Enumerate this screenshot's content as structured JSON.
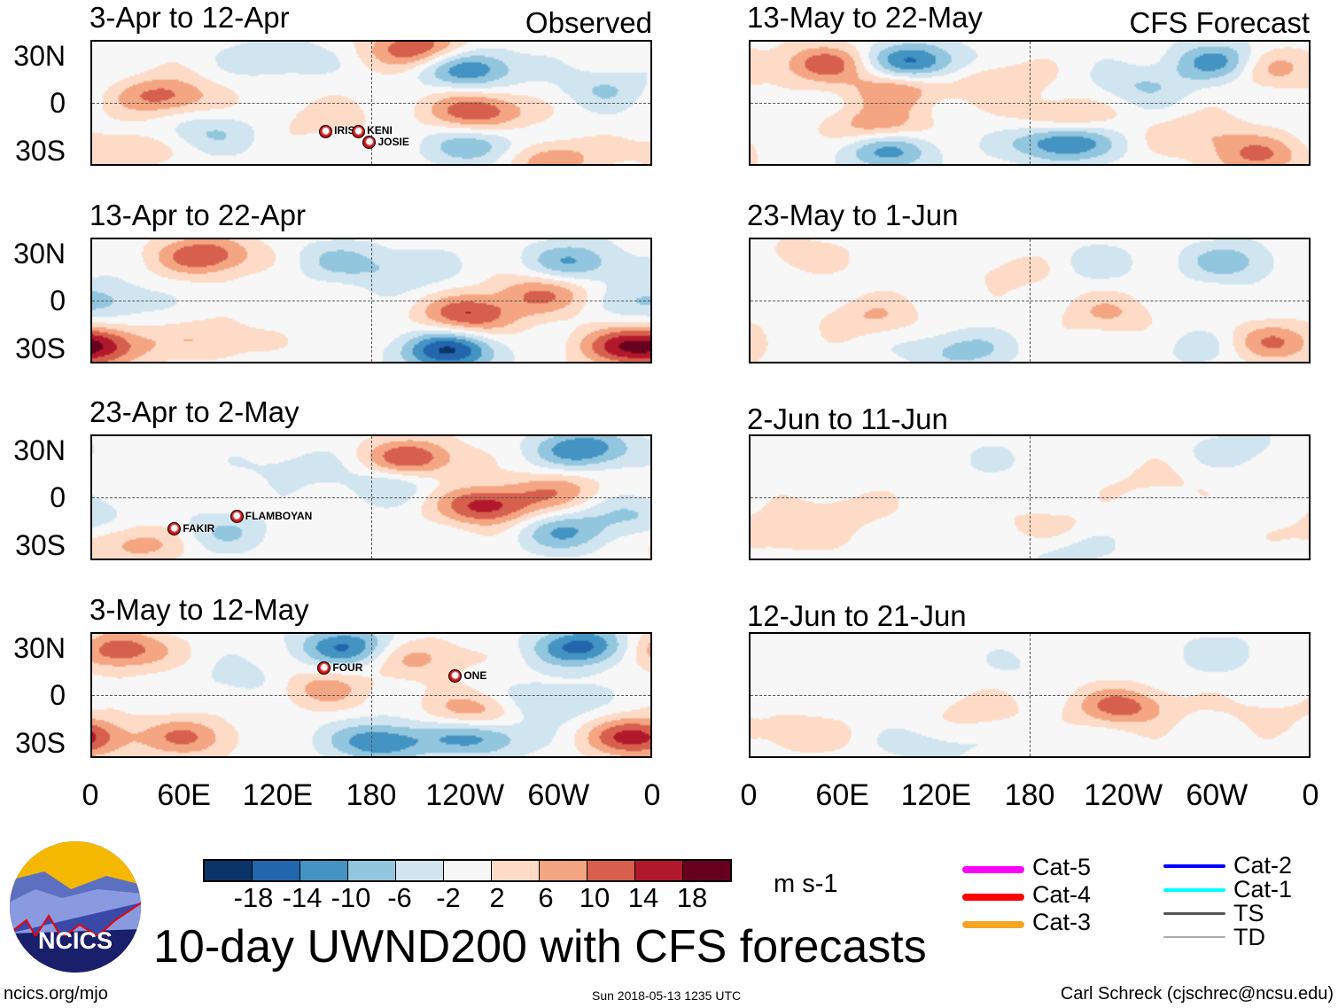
{
  "title": "10-day UWND200 with CFS forecasts",
  "units": "m s-1",
  "observed_label": "Observed",
  "forecast_label": "CFS Forecast",
  "logo_text": "NCICS",
  "footer": {
    "left": "ncics.org/mjo",
    "center": "Sun 2018-05-13 1235 UTC",
    "right": "Carl Schreck (cjschrec@ncsu.edu)"
  },
  "lat_labels": [
    "30N",
    "0",
    "30S"
  ],
  "lon_labels": [
    "0",
    "60E",
    "120E",
    "180",
    "120W",
    "60W",
    "0"
  ],
  "colorbar": {
    "colors": [
      "#0b3468",
      "#2266ad",
      "#4393c3",
      "#92c5de",
      "#d1e5f0",
      "#f7f7f7",
      "#fddbc7",
      "#f4a582",
      "#d6604d",
      "#b2182b",
      "#67001f"
    ],
    "labels": [
      "-18",
      "-14",
      "-10",
      "-6",
      "-2",
      "2",
      "6",
      "10",
      "14",
      "18"
    ]
  },
  "storm_legend": [
    {
      "label": "Cat-5",
      "color": "#ff00ff"
    },
    {
      "label": "Cat-4",
      "color": "#ff0000"
    },
    {
      "label": "Cat-3",
      "color": "#f5a623"
    },
    {
      "label": "Cat-2",
      "color": "#0000ff"
    },
    {
      "label": "Cat-1",
      "color": "#00ffff"
    },
    {
      "label": "TS",
      "color": "#555555"
    },
    {
      "label": "TD",
      "color": "#aaaaaa"
    }
  ],
  "chart_data": {
    "type": "heatmap",
    "variable": "200-hPa zonal wind anomaly (m s-1)",
    "lon_range": [
      0,
      360
    ],
    "lat_range": [
      -40,
      40
    ],
    "panels": [
      {
        "title": "3-Apr to 12-Apr",
        "kind": "observed",
        "anomalies": [
          [
            45,
            5,
            12
          ],
          [
            209,
            36,
            14
          ],
          [
            243,
            23,
            -14
          ],
          [
            249,
            -5,
            14
          ],
          [
            250,
            -28,
            -10
          ],
          [
            73,
            -19,
            -6
          ],
          [
            294,
            -36,
            10
          ],
          [
            120,
            30,
            -6
          ],
          [
            20,
            -30,
            6
          ],
          [
            330,
            10,
            -6
          ],
          [
            150,
            -10,
            4
          ]
        ],
        "storms": [
          {
            "name": "IRIS",
            "lon": 150,
            "lat": -17
          },
          {
            "name": "KENI",
            "lon": 171,
            "lat": -17
          },
          {
            "name": "JOSIE",
            "lon": 178,
            "lat": -24
          }
        ]
      },
      {
        "title": "13-Apr to 22-Apr",
        "kind": "observed",
        "anomalies": [
          [
            73,
            30,
            14
          ],
          [
            243,
            -9,
            14
          ],
          [
            229,
            -32,
            -18
          ],
          [
            311,
            26,
            -10
          ],
          [
            5,
            0,
            -8
          ],
          [
            5,
            -29,
            14
          ],
          [
            288,
            5,
            10
          ],
          [
            158,
            27,
            -6
          ],
          [
            78,
            -25,
            6
          ],
          [
            200,
            20,
            -6
          ],
          [
            340,
            -30,
            10
          ]
        ],
        "storms": []
      },
      {
        "title": "23-Apr to 2-May",
        "kind": "observed",
        "anomalies": [
          [
            206,
            26,
            14
          ],
          [
            317,
            32,
            -14
          ],
          [
            254,
            -5,
            16
          ],
          [
            192,
            10,
            -6
          ],
          [
            305,
            -22,
            -10
          ],
          [
            27,
            -30,
            8
          ],
          [
            84,
            -22,
            -6
          ],
          [
            300,
            5,
            8
          ],
          [
            130,
            20,
            -4
          ],
          [
            350,
            -10,
            -6
          ]
        ],
        "storms": [
          {
            "name": "FAKIR",
            "lon": 53,
            "lat": -19
          },
          {
            "name": "FLAMBOYAN",
            "lon": 93,
            "lat": -11
          }
        ]
      },
      {
        "title": "3-May to 12-May",
        "kind": "observed",
        "anomalies": [
          [
            163,
            32,
            -14
          ],
          [
            317,
            32,
            -16
          ],
          [
            16,
            30,
            14
          ],
          [
            249,
            -10,
            10
          ],
          [
            249,
            -27,
            -12
          ],
          [
            351,
            -27,
            16
          ],
          [
            61,
            -27,
            10
          ],
          [
            186,
            -30,
            -14
          ],
          [
            146,
            5,
            8
          ],
          [
            210,
            25,
            8
          ],
          [
            290,
            -5,
            -8
          ],
          [
            100,
            10,
            -4
          ]
        ],
        "storms": [
          {
            "name": "FOUR",
            "lon": 149,
            "lat": 18
          },
          {
            "name": "ONE",
            "lon": 233,
            "lat": 13
          }
        ]
      },
      {
        "title": "13-May to 22-May",
        "kind": "forecast",
        "anomalies": [
          [
            104,
            27,
            -16
          ],
          [
            48,
            26,
            12
          ],
          [
            304,
            27,
            -14
          ],
          [
            332,
            24,
            10
          ],
          [
            94,
            10,
            10
          ],
          [
            200,
            -25,
            -16
          ],
          [
            88,
            -30,
            -12
          ],
          [
            82,
            -15,
            10
          ],
          [
            201,
            -10,
            8
          ],
          [
            326,
            -34,
            10
          ],
          [
            252,
            12,
            -6
          ],
          [
            160,
            15,
            6
          ],
          [
            290,
            -20,
            6
          ]
        ],
        "storms": []
      },
      {
        "title": "23-May to 1-Jun",
        "kind": "forecast",
        "anomalies": [
          [
            77,
            -10,
            6
          ],
          [
            230,
            -8,
            6
          ],
          [
            134,
            -32,
            -8
          ],
          [
            309,
            26,
            -8
          ],
          [
            337,
            -27,
            10
          ],
          [
            220,
            25,
            -4
          ],
          [
            30,
            30,
            4
          ],
          [
            170,
            20,
            4
          ],
          [
            290,
            -30,
            -4
          ]
        ],
        "storms": []
      },
      {
        "title": "2-Jun to 11-Jun",
        "kind": "forecast",
        "anomalies": [
          [
            60,
            -8,
            4
          ],
          [
            190,
            -19,
            4
          ],
          [
            202,
            -33,
            -4
          ],
          [
            316,
            32,
            -4
          ],
          [
            20,
            -22,
            6
          ],
          [
            150,
            25,
            -2
          ],
          [
            260,
            10,
            3
          ]
        ],
        "storms": []
      },
      {
        "title": "12-Jun to 21-Jun",
        "kind": "forecast",
        "anomalies": [
          [
            240,
            -7,
            12
          ],
          [
            144,
            -10,
            4
          ],
          [
            116,
            -32,
            -4
          ],
          [
            303,
            28,
            -4
          ],
          [
            30,
            -25,
            5
          ],
          [
            180,
            20,
            -2
          ],
          [
            330,
            -10,
            3
          ]
        ],
        "storms": []
      }
    ]
  }
}
